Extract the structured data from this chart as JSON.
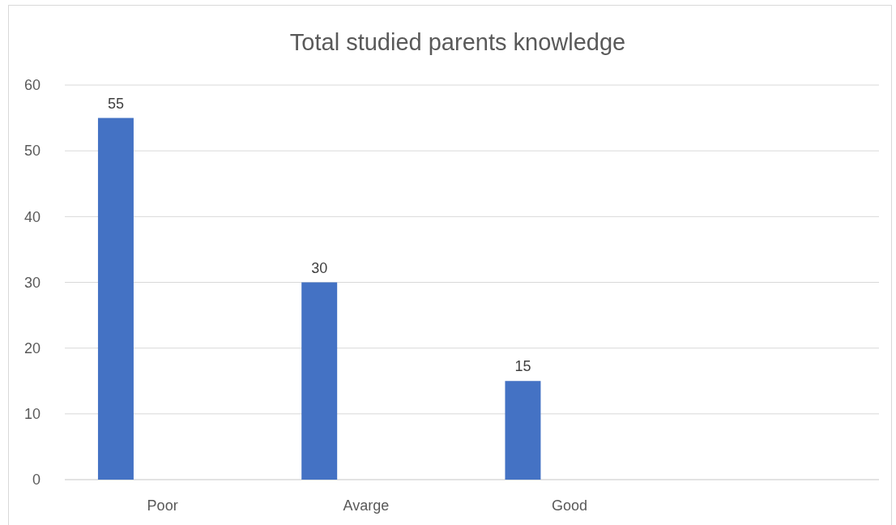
{
  "chart_data": {
    "type": "bar",
    "title": "Total studied parents knowledge",
    "categories": [
      "Poor",
      "Avarge",
      "Good",
      null
    ],
    "values": [
      55,
      30,
      15,
      null
    ],
    "color": "#4472c4",
    "ylim": [
      0,
      60
    ],
    "yticks": [
      0,
      10,
      20,
      30,
      40,
      50,
      60
    ],
    "grid": "y",
    "data_labels": true
  }
}
